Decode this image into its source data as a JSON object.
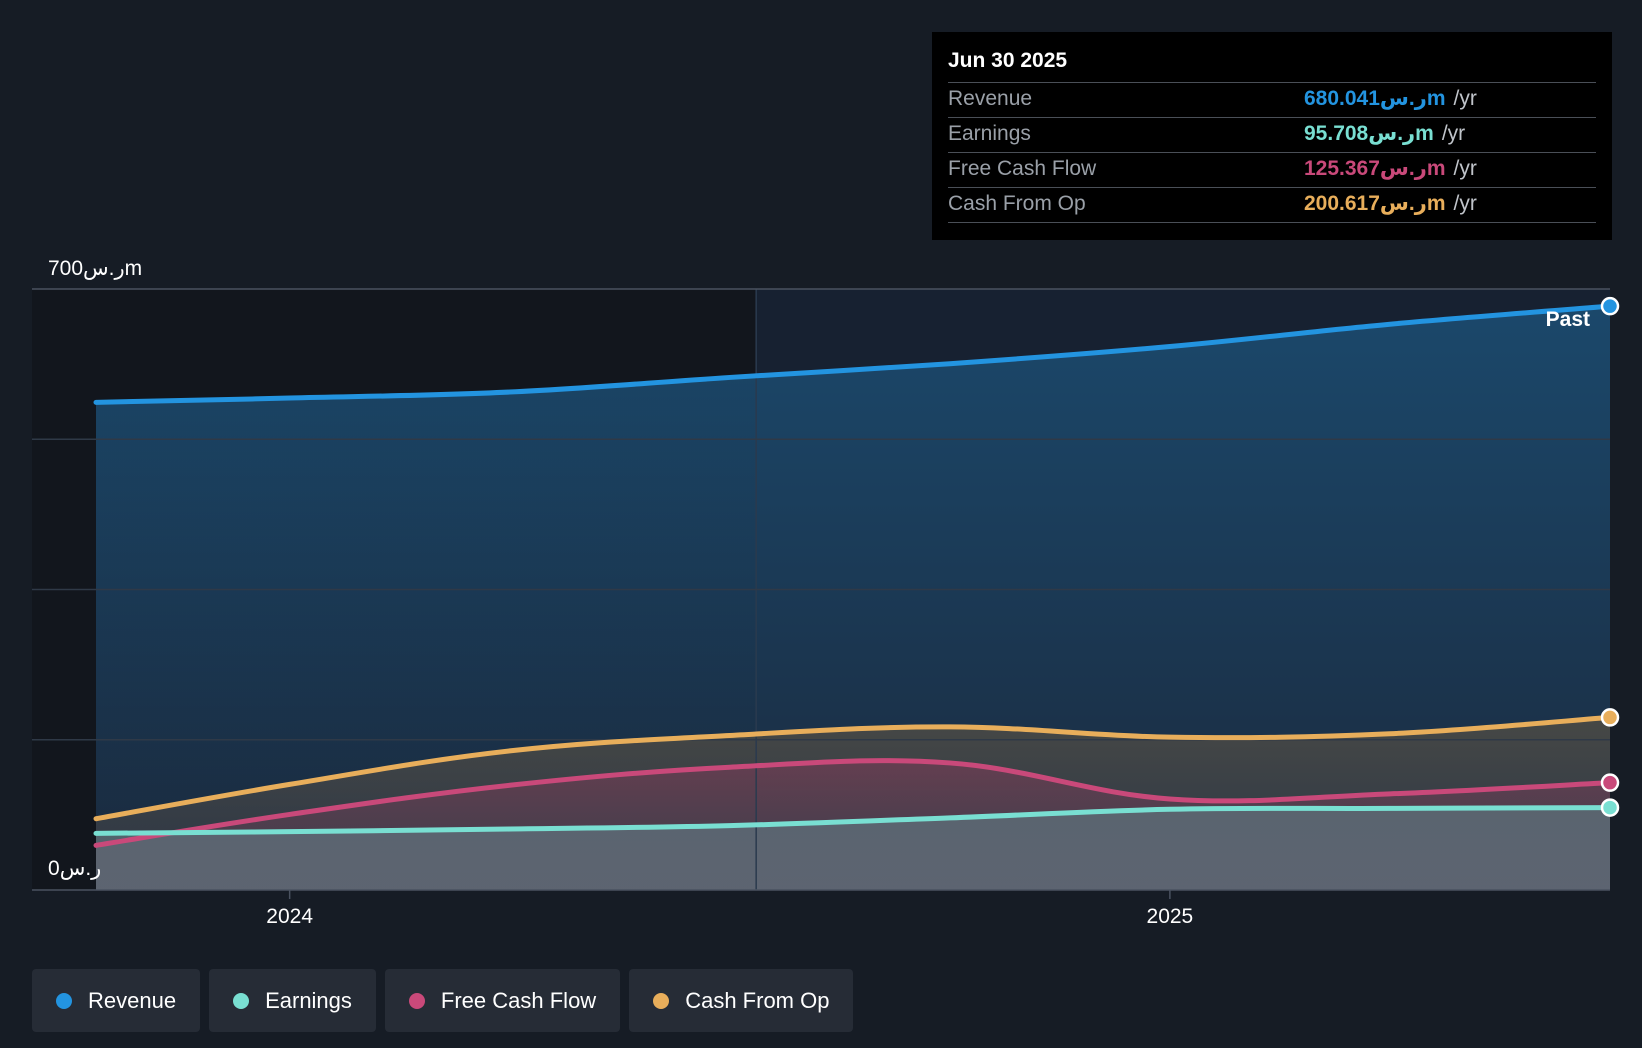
{
  "chart_data": {
    "type": "area",
    "x_start": 2023.78,
    "x_end": 2025.5,
    "x_ticks": [
      {
        "value": 2024,
        "label": "2024"
      },
      {
        "value": 2025,
        "label": "2025"
      }
    ],
    "ylim": [
      0,
      700
    ],
    "y_labels": {
      "max": "700ر.سm",
      "min": "0ر.س"
    },
    "past_label": "Past",
    "highlight_start": 2024.53,
    "series": [
      {
        "name": "Revenue",
        "color": "#2394e0",
        "points": [
          [
            2023.78,
            568
          ],
          [
            2024.0,
            573
          ],
          [
            2024.25,
            580
          ],
          [
            2024.5,
            597
          ],
          [
            2024.75,
            613
          ],
          [
            2025.0,
            633
          ],
          [
            2025.25,
            659
          ],
          [
            2025.5,
            680
          ]
        ]
      },
      {
        "name": "Cash From Op",
        "color": "#e8ae5b",
        "points": [
          [
            2023.78,
            83
          ],
          [
            2024.0,
            123
          ],
          [
            2024.25,
            162
          ],
          [
            2024.5,
            180
          ],
          [
            2024.75,
            190
          ],
          [
            2025.0,
            178
          ],
          [
            2025.25,
            182
          ],
          [
            2025.5,
            201
          ]
        ]
      },
      {
        "name": "Free Cash Flow",
        "color": "#c9497a",
        "points": [
          [
            2023.78,
            52
          ],
          [
            2024.0,
            88
          ],
          [
            2024.25,
            122
          ],
          [
            2024.5,
            143
          ],
          [
            2024.75,
            148
          ],
          [
            2025.0,
            106
          ],
          [
            2025.25,
            112
          ],
          [
            2025.5,
            125
          ]
        ]
      },
      {
        "name": "Earnings",
        "color": "#79dfd2",
        "points": [
          [
            2023.78,
            66
          ],
          [
            2024.0,
            68
          ],
          [
            2024.25,
            71
          ],
          [
            2024.5,
            75
          ],
          [
            2024.75,
            84
          ],
          [
            2025.0,
            94
          ],
          [
            2025.25,
            95
          ],
          [
            2025.5,
            96
          ]
        ]
      }
    ]
  },
  "tooltip": {
    "date": "Jun 30 2025",
    "rows": [
      {
        "label": "Revenue",
        "value": "680.041ر.سm",
        "unit": "/yr",
        "color": "#2394e0"
      },
      {
        "label": "Earnings",
        "value": "95.708ر.سm",
        "unit": "/yr",
        "color": "#79dfd2"
      },
      {
        "label": "Free Cash Flow",
        "value": "125.367ر.سm",
        "unit": "/yr",
        "color": "#c9497a"
      },
      {
        "label": "Cash From Op",
        "value": "200.617ر.سm",
        "unit": "/yr",
        "color": "#e8ae5b"
      }
    ]
  },
  "legend": [
    {
      "label": "Revenue",
      "color": "#2394e0"
    },
    {
      "label": "Earnings",
      "color": "#79dfd2"
    },
    {
      "label": "Free Cash Flow",
      "color": "#c9497a"
    },
    {
      "label": "Cash From Op",
      "color": "#e8ae5b"
    }
  ]
}
